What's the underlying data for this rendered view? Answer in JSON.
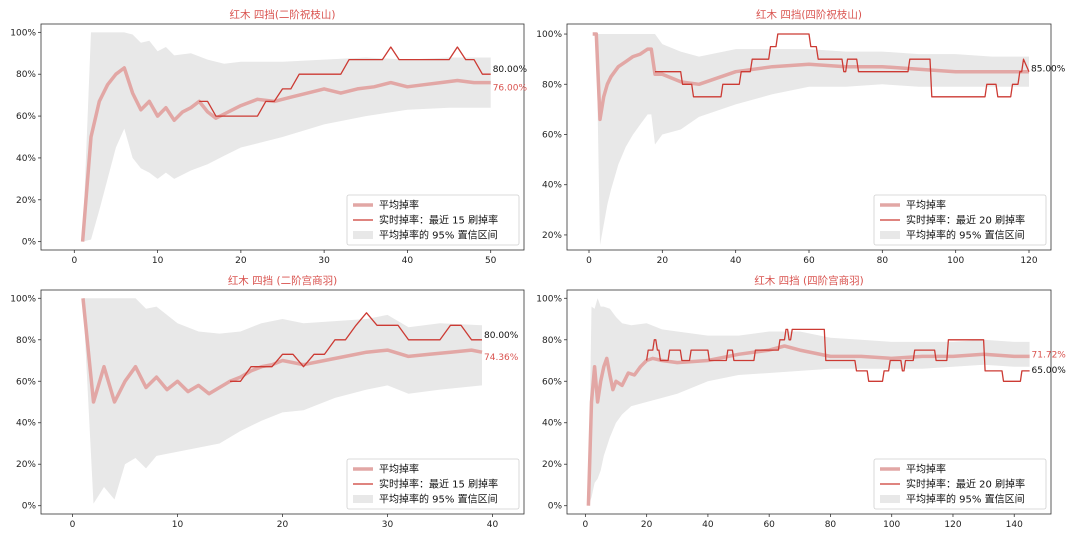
{
  "chart_data": [
    {
      "type": "line",
      "title": "红木 四挡(二阶祝枝山)",
      "xlim": [
        -4,
        54
      ],
      "ylim": [
        -4,
        104
      ],
      "xticks": [
        0,
        10,
        20,
        30,
        40,
        50
      ],
      "yticks": [
        0,
        20,
        40,
        60,
        80,
        100
      ],
      "ytick_labels": [
        "0%",
        "20%",
        "40%",
        "60%",
        "80%",
        "100%"
      ],
      "xticklabels": [
        "0",
        "10",
        "20",
        "30",
        "40",
        "50"
      ],
      "legend": {
        "avg": "平均掉率",
        "rt": "实时掉率：最近 15 刷掉率",
        "ci": "平均掉率的 95% 置信区间",
        "position": "lower right"
      },
      "end_labels": {
        "rt": "80.00%",
        "avg": "76.00%"
      },
      "series": [
        {
          "name": "平均掉率",
          "x": [
            1,
            2,
            3,
            4,
            5,
            6,
            7,
            8,
            9,
            10,
            11,
            12,
            13,
            14,
            15,
            16,
            17,
            18,
            19,
            20,
            22,
            24,
            26,
            28,
            30,
            32,
            34,
            36,
            38,
            40,
            42,
            44,
            46,
            48,
            50
          ],
          "values": [
            0,
            50,
            67,
            75,
            80,
            83,
            71,
            63,
            67,
            60,
            64,
            58,
            62,
            64,
            67,
            62,
            59,
            61,
            63,
            65,
            68,
            67,
            69,
            71,
            73,
            71,
            73,
            74,
            76,
            74,
            75,
            76,
            77,
            76,
            76
          ]
        },
        {
          "name": "实时掉率：最近 15 刷掉率",
          "x": [
            15,
            16,
            17,
            18,
            19,
            20,
            21,
            22,
            23,
            24,
            25,
            26,
            27,
            28,
            29,
            30,
            31,
            32,
            33,
            34,
            35,
            36,
            37,
            38,
            39,
            40,
            41,
            42,
            43,
            44,
            45,
            46,
            47,
            48,
            49,
            50
          ],
          "values": [
            67,
            67,
            60,
            60,
            60,
            60,
            60,
            60,
            67,
            67,
            73,
            73,
            80,
            80,
            80,
            80,
            80,
            80,
            87,
            87,
            87,
            87,
            87,
            93,
            87,
            87,
            87,
            87,
            87,
            87,
            87,
            93,
            87,
            87,
            80,
            80
          ]
        }
      ],
      "ci": {
        "x": [
          1,
          2,
          3,
          4,
          5,
          6,
          7,
          8,
          9,
          10,
          11,
          12,
          14,
          16,
          18,
          20,
          25,
          30,
          35,
          40,
          45,
          50
        ],
        "lower": [
          0,
          1,
          15,
          30,
          45,
          54,
          40,
          35,
          33,
          30,
          33,
          30,
          34,
          37,
          41,
          45,
          50,
          56,
          60,
          63,
          64,
          64
        ],
        "upper": [
          0,
          100,
          100,
          100,
          100,
          100,
          99,
          95,
          96,
          91,
          93,
          89,
          90,
          87,
          85,
          86,
          86,
          87,
          88,
          87,
          88,
          88
        ]
      }
    },
    {
      "type": "line",
      "title": "红木 四挡(四阶祝枝山)",
      "xlim": [
        -6,
        126
      ],
      "ylim": [
        14,
        104
      ],
      "xticks": [
        0,
        20,
        40,
        60,
        80,
        100,
        120
      ],
      "yticks": [
        20,
        40,
        60,
        80,
        100
      ],
      "ytick_labels": [
        "20%",
        "40%",
        "60%",
        "80%",
        "100%"
      ],
      "xticklabels": [
        "0",
        "20",
        "40",
        "60",
        "80",
        "100",
        "120"
      ],
      "legend": {
        "avg": "平均掉率",
        "rt": "实时掉率：最近 20 刷掉率",
        "ci": "平均掉率的 95% 置信区间",
        "position": "lower right"
      },
      "end_labels": {
        "rt": "85.00%"
      },
      "series": [
        {
          "name": "平均掉率",
          "x": [
            1,
            2,
            3,
            4,
            5,
            6,
            8,
            10,
            12,
            14,
            16,
            17,
            18,
            20,
            25,
            30,
            40,
            50,
            60,
            70,
            80,
            90,
            100,
            110,
            120
          ],
          "values": [
            100,
            100,
            66,
            75,
            80,
            83,
            87,
            89,
            91,
            92,
            94,
            94,
            84,
            84,
            81,
            80,
            85,
            87,
            88,
            87,
            87,
            86,
            85,
            85,
            85
          ]
        },
        {
          "name": "实时掉率：最近 20 刷掉率",
          "x": [
            18,
            20,
            22,
            22.5,
            25,
            25.5,
            28,
            28.5,
            31,
            31.5,
            36,
            36.5,
            41,
            41.5,
            44,
            44.5,
            49,
            49.5,
            51,
            51.5,
            60,
            60.5,
            62,
            62.5,
            69,
            69.5,
            70,
            70.5,
            73,
            73.5,
            78,
            78.5,
            83,
            83.5,
            86,
            86.5,
            87,
            87.5,
            93,
            93.5,
            101,
            101.5,
            103,
            103.5,
            108,
            108.5,
            111,
            111.5,
            113,
            113.5,
            115,
            115.5,
            117,
            117.5,
            118,
            118.5,
            120
          ],
          "values": [
            85,
            85,
            85,
            85,
            85,
            80,
            80,
            75,
            75,
            75,
            75,
            80,
            80,
            85,
            85,
            90,
            90,
            95,
            95,
            100,
            100,
            95,
            95,
            90,
            90,
            85,
            85,
            90,
            90,
            85,
            85,
            85,
            85,
            85,
            85,
            85,
            85,
            90,
            90,
            75,
            75,
            75,
            75,
            75,
            75,
            80,
            80,
            75,
            75,
            75,
            75,
            80,
            80,
            85,
            85,
            90,
            85
          ]
        }
      ],
      "ci": {
        "x": [
          1,
          2,
          3,
          4,
          5,
          6,
          8,
          10,
          12,
          14,
          16,
          17,
          18,
          20,
          25,
          30,
          40,
          50,
          60,
          70,
          80,
          90,
          100,
          110,
          120
        ],
        "lower": [
          100,
          100,
          16,
          24,
          32,
          38,
          48,
          55,
          60,
          64,
          68,
          68,
          56,
          60,
          62,
          67,
          72,
          76,
          79,
          79,
          80,
          79,
          79,
          79,
          79
        ],
        "upper": [
          100,
          100,
          100,
          100,
          100,
          100,
          100,
          100,
          100,
          100,
          100,
          100,
          100,
          96,
          93,
          91,
          94,
          94,
          94,
          93,
          93,
          92,
          92,
          91,
          91
        ]
      }
    },
    {
      "type": "line",
      "title": "红木 四挡 (二阶宫商羽)",
      "xlim": [
        -3,
        43
      ],
      "ylim": [
        -4,
        104
      ],
      "xticks": [
        0,
        10,
        20,
        30,
        40
      ],
      "yticks": [
        0,
        20,
        40,
        60,
        80,
        100
      ],
      "ytick_labels": [
        "0%",
        "20%",
        "40%",
        "60%",
        "80%",
        "100%"
      ],
      "xticklabels": [
        "0",
        "10",
        "20",
        "30",
        "40"
      ],
      "legend": {
        "avg": "平均掉率",
        "rt": "实时掉率：最近 15 刷掉率",
        "ci": "平均掉率的 95% 置信区间",
        "position": "lower right"
      },
      "end_labels": {
        "rt": "80.00%",
        "avg": "74.36%"
      },
      "series": [
        {
          "name": "平均掉率",
          "x": [
            1,
            2,
            3,
            4,
            5,
            6,
            7,
            8,
            9,
            10,
            11,
            12,
            13,
            14,
            15,
            16,
            17,
            18,
            19,
            20,
            22,
            24,
            26,
            28,
            30,
            32,
            34,
            36,
            38,
            39
          ],
          "values": [
            100,
            50,
            67,
            50,
            60,
            67,
            57,
            62,
            56,
            60,
            55,
            58,
            54,
            57,
            60,
            62,
            65,
            67,
            68,
            70,
            68,
            70,
            72,
            74,
            75,
            72,
            73,
            74,
            75,
            74
          ]
        },
        {
          "name": "实时掉率：最近 15 刷掉率",
          "x": [
            15,
            16,
            17,
            18,
            19,
            20,
            21,
            22,
            23,
            24,
            25,
            26,
            27,
            28,
            29,
            30,
            31,
            32,
            33,
            34,
            35,
            36,
            37,
            38,
            39
          ],
          "values": [
            60,
            60,
            67,
            67,
            67,
            73,
            73,
            67,
            73,
            73,
            80,
            80,
            87,
            93,
            87,
            87,
            87,
            80,
            80,
            80,
            80,
            87,
            87,
            80,
            80
          ]
        }
      ],
      "ci": {
        "x": [
          1,
          2,
          3,
          4,
          5,
          6,
          7,
          8,
          10,
          12,
          14,
          16,
          18,
          20,
          22,
          25,
          28,
          30,
          32,
          35,
          39
        ],
        "lower": [
          100,
          1,
          9,
          3,
          20,
          23,
          18,
          24,
          26,
          28,
          30,
          36,
          41,
          45,
          46,
          52,
          56,
          58,
          54,
          56,
          58
        ],
        "upper": [
          100,
          100,
          100,
          100,
          100,
          100,
          95,
          96,
          88,
          84,
          83,
          84,
          88,
          90,
          88,
          89,
          90,
          92,
          86,
          88,
          87
        ]
      }
    },
    {
      "type": "line",
      "title": "红木 四挡 (四阶宫商羽)",
      "xlim": [
        -6,
        152
      ],
      "ylim": [
        -4,
        104
      ],
      "xticks": [
        0,
        20,
        40,
        60,
        80,
        100,
        120,
        140
      ],
      "yticks": [
        0,
        20,
        40,
        60,
        80,
        100
      ],
      "ytick_labels": [
        "0%",
        "20%",
        "40%",
        "60%",
        "80%",
        "100%"
      ],
      "xticklabels": [
        "0",
        "20",
        "40",
        "60",
        "80",
        "100",
        "120",
        "140"
      ],
      "legend": {
        "avg": "平均掉率",
        "rt": "实时掉率：最近 20 刷掉率",
        "ci": "平均掉率的 95% 置信区间",
        "position": "lower right"
      },
      "end_labels": {
        "avg": "71.72%",
        "rt": "65.00%"
      },
      "series": [
        {
          "name": "平均掉率",
          "x": [
            1,
            2,
            3,
            4,
            5,
            6,
            7,
            8,
            9,
            10,
            12,
            14,
            16,
            18,
            20,
            22,
            25,
            30,
            40,
            50,
            60,
            65,
            70,
            80,
            90,
            100,
            110,
            120,
            130,
            140,
            145
          ],
          "values": [
            0,
            50,
            67,
            50,
            60,
            67,
            71,
            63,
            56,
            60,
            58,
            64,
            63,
            67,
            70,
            71,
            70,
            69,
            70,
            73,
            75,
            77,
            75,
            72,
            72,
            71,
            72,
            72,
            73,
            72,
            72
          ]
        },
        {
          "name": "实时掉率：最近 20 刷掉率",
          "x": [
            20,
            20.5,
            22,
            22.5,
            23,
            23.5,
            24,
            24.5,
            27,
            27.5,
            31,
            31.5,
            34,
            34.5,
            40,
            40.5,
            46,
            46.5,
            48,
            48.5,
            55,
            55.5,
            63,
            63.5,
            65,
            65.5,
            66,
            66.5,
            67,
            67.5,
            78,
            78.5,
            88,
            88.5,
            92,
            92.5,
            97,
            97.5,
            99,
            99.5,
            103,
            103.5,
            104,
            104.5,
            107,
            107.5,
            114,
            114.5,
            118,
            118.5,
            130,
            130.5,
            136,
            136.5,
            142,
            142.5,
            145
          ],
          "values": [
            70,
            75,
            75,
            80,
            80,
            75,
            75,
            70,
            70,
            75,
            75,
            70,
            70,
            75,
            75,
            70,
            70,
            75,
            75,
            70,
            70,
            75,
            75,
            80,
            80,
            85,
            85,
            80,
            80,
            85,
            85,
            70,
            70,
            65,
            65,
            60,
            60,
            65,
            65,
            70,
            70,
            65,
            65,
            70,
            70,
            75,
            75,
            70,
            70,
            80,
            80,
            65,
            65,
            60,
            60,
            65,
            65
          ]
        }
      ],
      "ci": {
        "x": [
          1,
          2,
          3,
          4,
          5,
          6,
          8,
          10,
          12,
          15,
          20,
          25,
          30,
          40,
          50,
          60,
          70,
          80,
          90,
          100,
          110,
          120,
          130,
          140,
          145
        ],
        "lower": [
          0,
          4,
          11,
          13,
          17,
          24,
          33,
          40,
          44,
          48,
          50,
          52,
          54,
          60,
          63,
          64,
          65,
          66,
          66,
          66,
          66,
          67,
          68,
          67,
          67
        ],
        "upper": [
          0,
          96,
          95,
          100,
          96,
          96,
          95,
          91,
          88,
          87,
          88,
          85,
          84,
          82,
          82,
          84,
          84,
          81,
          80,
          79,
          79,
          79,
          80,
          79,
          79
        ]
      }
    }
  ]
}
